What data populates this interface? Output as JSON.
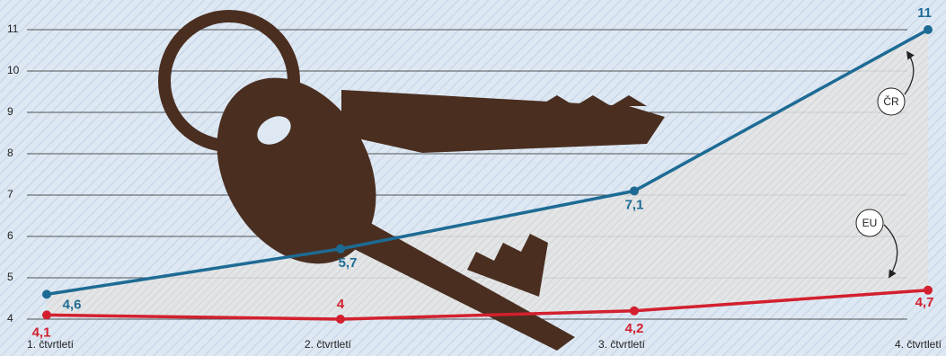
{
  "chart_data": {
    "type": "line",
    "categories": [
      "1. čtvrtletí",
      "2. čtvrtletí",
      "3. čtvrtletí",
      "4. čtvrtletí"
    ],
    "series": [
      {
        "name": "ČR",
        "color": "#1d6b94",
        "values": [
          4.6,
          5.7,
          7.1,
          11
        ],
        "value_labels": [
          "4,6",
          "5,7",
          "7,1",
          "11"
        ]
      },
      {
        "name": "EU",
        "color": "#d3202e",
        "values": [
          4.1,
          4,
          4.2,
          4.7
        ],
        "value_labels": [
          "4,1",
          "4",
          "4,2",
          "4,7"
        ]
      }
    ],
    "ylim": [
      4,
      11
    ],
    "yticks": [
      4,
      5,
      6,
      7,
      8,
      9,
      10,
      11
    ],
    "grid": true
  }
}
